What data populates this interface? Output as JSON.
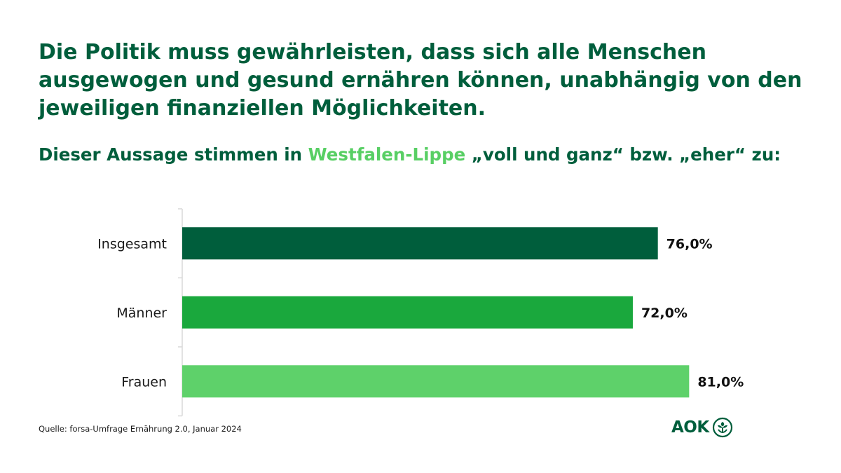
{
  "header": {
    "title": "Die Politik muss gewährleisten, dass sich alle Menschen ausgewogen und gesund ernähren können, unabhängig von den jeweiligen finanziellen Möglichkeiten.",
    "subtitle_prefix": "Dieser Aussage stimmen in ",
    "subtitle_highlight": "Westfalen-Lippe",
    "subtitle_suffix": " „voll und ganz“ bzw. „eher“ zu:"
  },
  "chart_data": {
    "type": "bar",
    "orientation": "horizontal",
    "categories": [
      "Insgesamt",
      "Männer",
      "Frauen"
    ],
    "values": [
      76.0,
      72.0,
      81.0
    ],
    "value_labels": [
      "76,0%",
      "72,0%",
      "81,0%"
    ],
    "unit": "%",
    "colors": [
      "#005e3c",
      "#1aa83d",
      "#5ed16a"
    ],
    "xlim": [
      0,
      100
    ],
    "grid": false
  },
  "footer": {
    "source": "Quelle: forsa-Umfrage  Ernährung 2.0, Januar 2024",
    "logo_text": "AOK",
    "logo_icon": "aok-tree-icon"
  },
  "colors": {
    "title": "#005e3c",
    "highlight": "#58cf64",
    "axis": "#d9d9d9"
  }
}
